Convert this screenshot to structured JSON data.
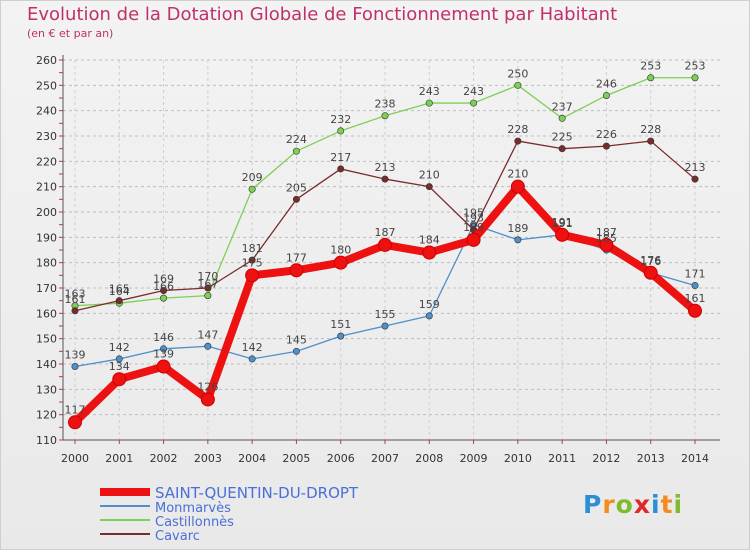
{
  "header": {
    "title": "Evolution de la Dotation Globale de Fonctionnement par Habitant",
    "subtitle": "(en € et par an)"
  },
  "brand": {
    "letters": [
      "P",
      "r",
      "o",
      "x",
      "i",
      "t",
      "i"
    ],
    "colors": [
      "#2a8fd6",
      "#f28c1e",
      "#7dbb2f",
      "#e0282a",
      "#2a8fd6",
      "#f28c1e",
      "#7dbb2f"
    ]
  },
  "chart_data": {
    "type": "line",
    "title": "Evolution de la Dotation Globale de Fonctionnement par Habitant",
    "subtitle": "(en € et par an)",
    "xlabel": "",
    "ylabel": "",
    "x": [
      "2000",
      "2001",
      "2002",
      "2003",
      "2004",
      "2005",
      "2006",
      "2007",
      "2008",
      "2009",
      "2010",
      "2011",
      "2012",
      "2013",
      "2014"
    ],
    "ylim": [
      110,
      260
    ],
    "yticks": [
      110,
      120,
      130,
      140,
      150,
      160,
      170,
      180,
      190,
      200,
      210,
      220,
      230,
      240,
      250,
      260
    ],
    "grid": "horizontal dashed",
    "legend": "bottom-left",
    "series": [
      {
        "name": "Monmarvès",
        "color": "#4f8fca",
        "values": [
          139,
          142,
          146,
          147,
          142,
          145,
          151,
          155,
          159,
          195,
          189,
          191,
          185,
          176,
          171
        ]
      },
      {
        "name": "Castillonnès",
        "color": "#7dd055",
        "values": [
          163,
          164,
          166,
          167,
          209,
          224,
          232,
          238,
          243,
          243,
          250,
          237,
          246,
          253,
          253
        ]
      },
      {
        "name": "Cavarc",
        "color": "#7a2c2c",
        "values": [
          161,
          165,
          169,
          170,
          181,
          205,
          217,
          213,
          210,
          193,
          228,
          225,
          226,
          228,
          213
        ]
      },
      {
        "name": "SAINT-QUENTIN-DU-DROPT",
        "color": "#ee1111",
        "values": [
          117,
          134,
          139,
          126,
          175,
          177,
          180,
          187,
          184,
          189,
          210,
          191,
          187,
          176,
          161
        ]
      }
    ],
    "legend_order": [
      "SAINT-QUENTIN-DU-DROPT",
      "Monmarvès",
      "Castillonnès",
      "Cavarc"
    ]
  }
}
